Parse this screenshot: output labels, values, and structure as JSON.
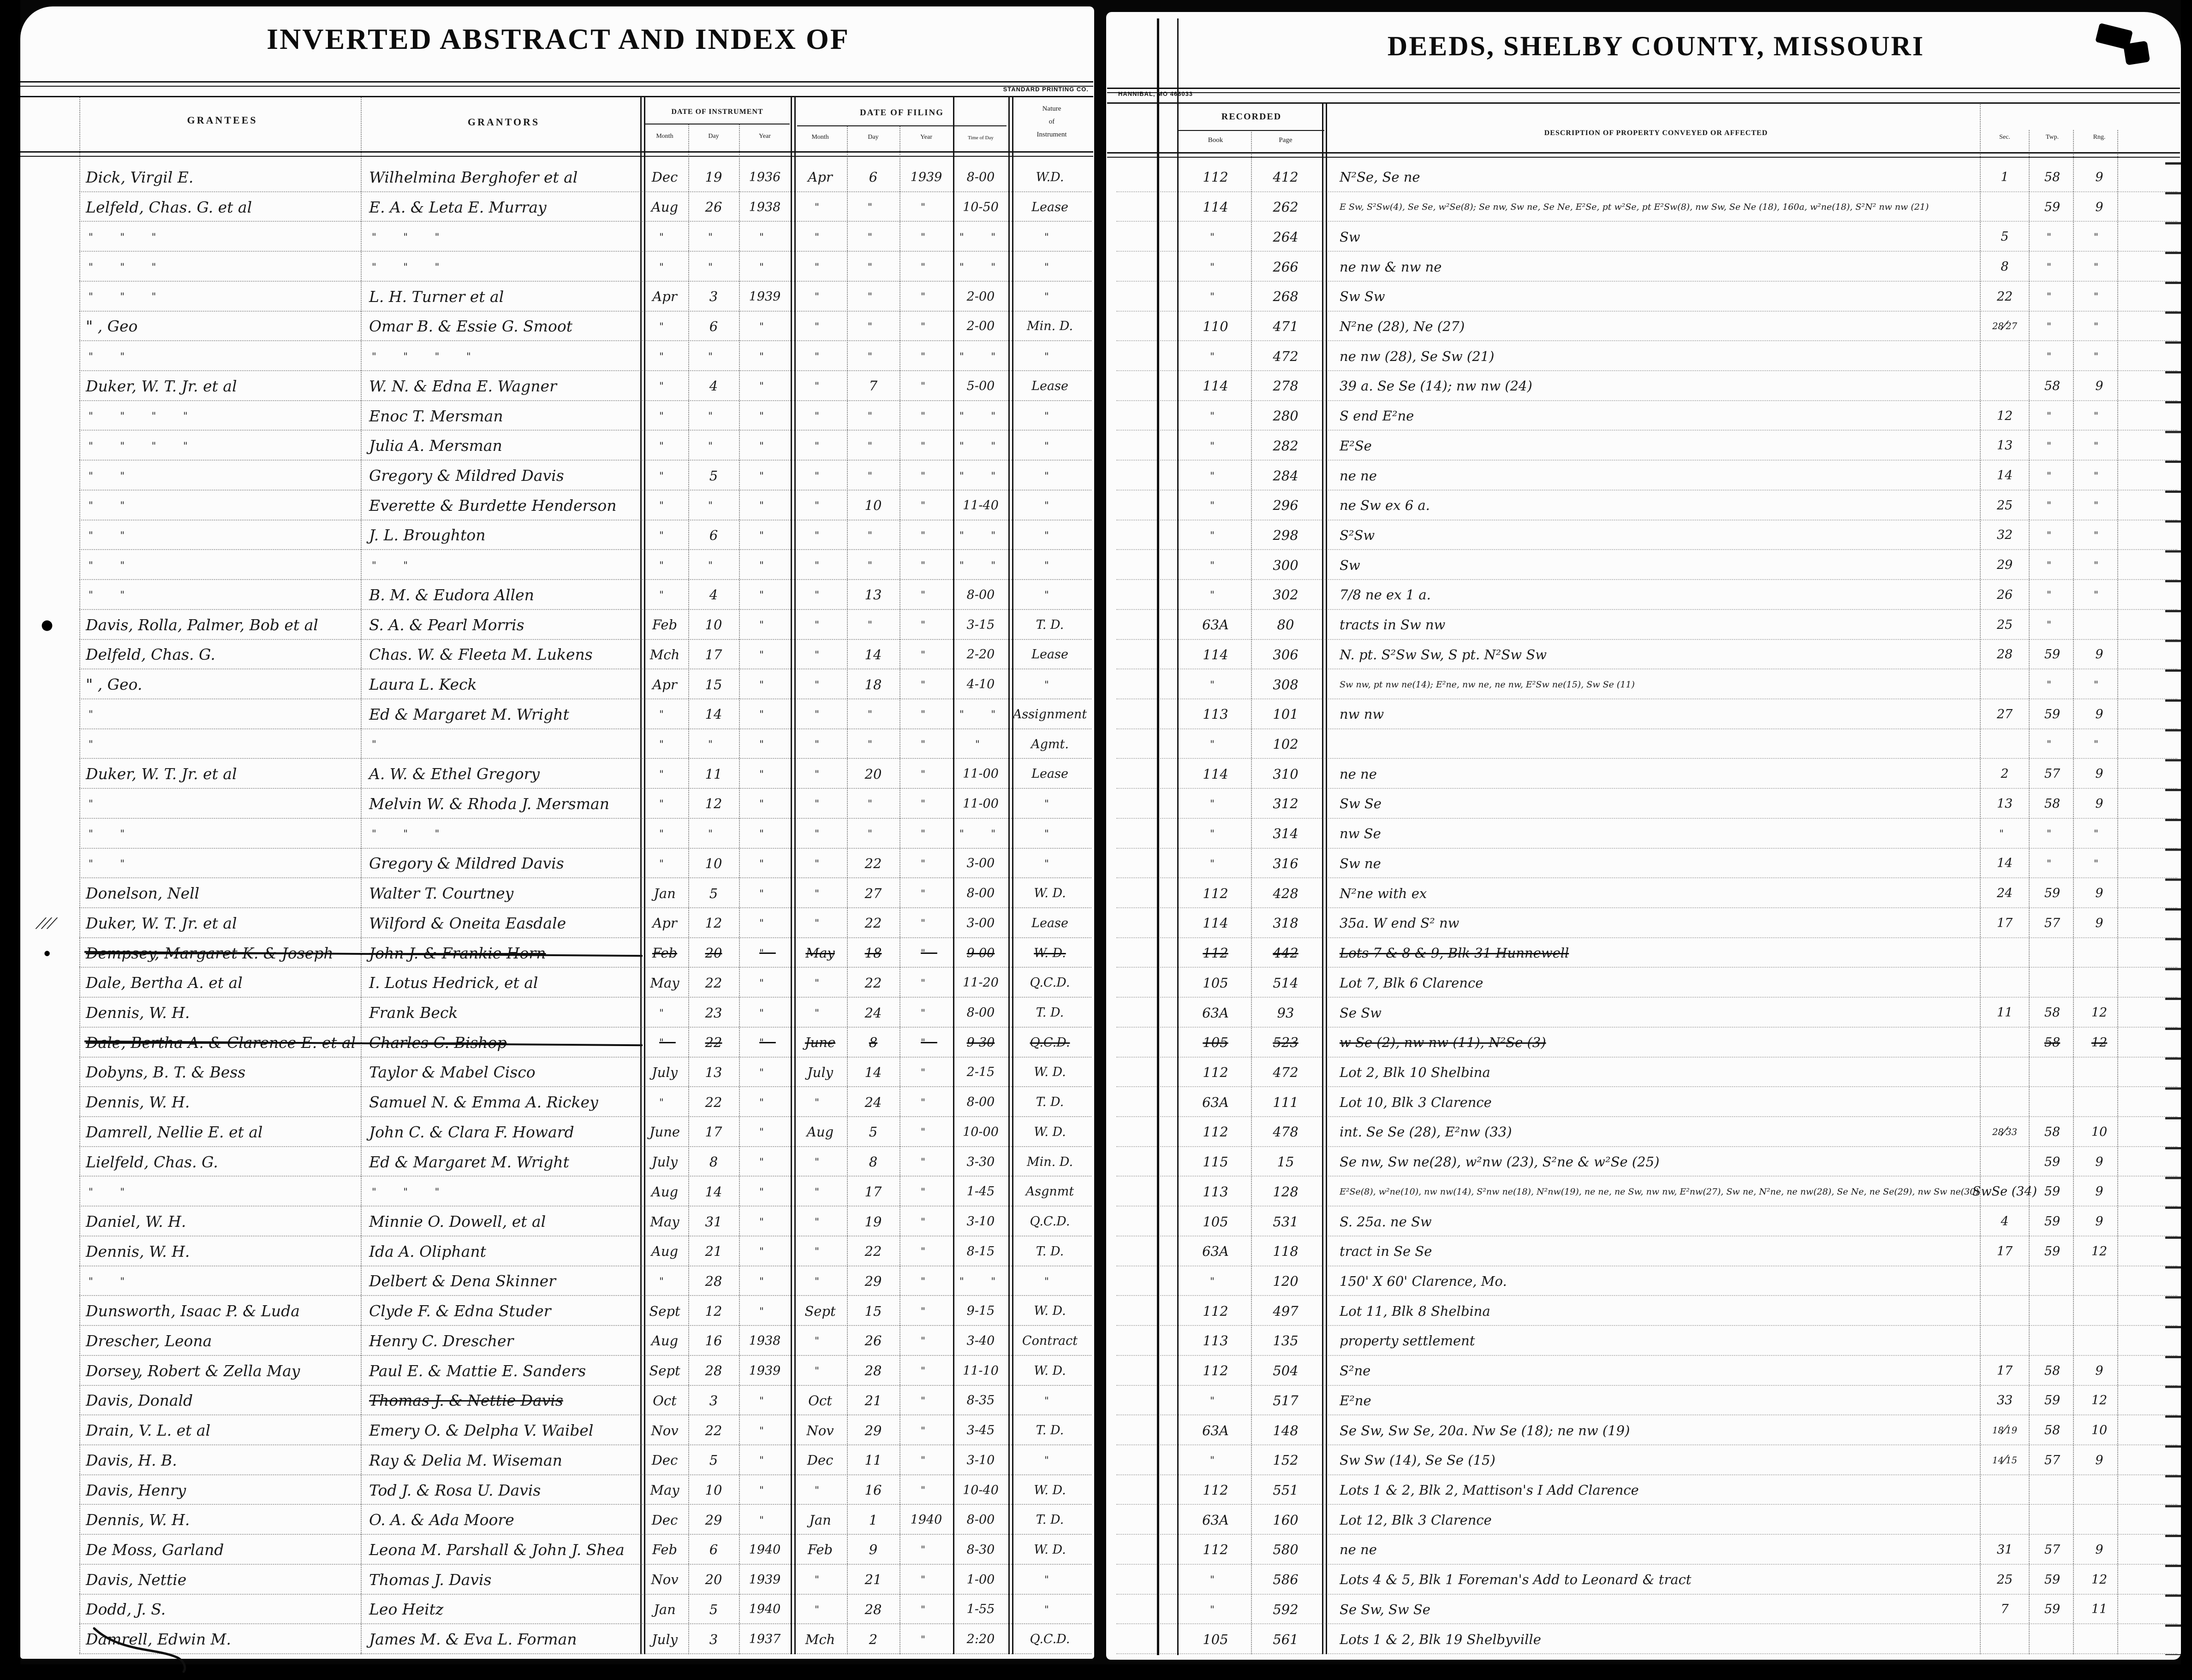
{
  "left_page": {
    "title": "INVERTED ABSTRACT AND INDEX OF",
    "printer": "STANDARD PRINTING CO.",
    "headers": {
      "grantees": "GRANTEES",
      "grantors": "GRANTORS",
      "date_of_instrument": "DATE OF INSTRUMENT",
      "date_of_filing": "DATE OF FILING",
      "month": "Month",
      "day": "Day",
      "year": "Year",
      "time_of_day": "Time of Day",
      "nature_line1": "Nature",
      "nature_line2": "of",
      "nature_line3": "Instrument"
    }
  },
  "right_page": {
    "title": "DEEDS, SHELBY COUNTY, MISSOURI",
    "printer": "HANNIBAL, MO 466033",
    "headers": {
      "recorded": "RECORDED",
      "book": "Book",
      "page": "Page",
      "description": "DESCRIPTION OF PROPERTY CONVEYED OR AFFECTED",
      "sec": "Sec.",
      "twp": "Twp.",
      "rng": "Rng."
    }
  },
  "ink_color": "#191919",
  "paper_color": "#fcfcfc",
  "rows": [
    {
      "g": "Dick, Virgil E.",
      "gr": "Wilhelmina Berghofer et al",
      "im": "Dec",
      "id": "19",
      "iy": "1936",
      "fm": "Apr",
      "fd": "6",
      "fy": "1939",
      "t": "8-00",
      "n": "W.D.",
      "bk": "112",
      "pg": "412",
      "d": "N²Se, Se ne",
      "sec": "1",
      "twp": "58",
      "rng": "9"
    },
    {
      "g": "Lelfeld, Chas. G. et al",
      "gr": "E. A. & Leta E. Murray",
      "im": "Aug",
      "id": "26",
      "iy": "1938",
      "fm": "\"",
      "fd": "\"",
      "fy": "\"",
      "t": "10-50",
      "n": "Lease",
      "bk": "114",
      "pg": "262",
      "d": "E Sw, S²Sw(4), Se Se, w²Se(8); Se nw, Sw ne, Se Ne, E²Se, pt w²Se, pt E²Sw(8), nw Sw, Se Ne (18), 160a, w²ne(18), S²N² nw nw (21)",
      "ds": true,
      "sec": "",
      "twp": "59",
      "rng": "9"
    },
    {
      "g": "\"   \"   \"",
      "gr": "\"   \"   \"",
      "im": "\"",
      "id": "\"",
      "iy": "\"",
      "fm": "\"",
      "fd": "\"",
      "fy": "\"",
      "t": "\"  \"",
      "n": "\"",
      "bk": "\"",
      "pg": "264",
      "d": "Sw",
      "sec": "5",
      "twp": "\"",
      "rng": "\""
    },
    {
      "g": "\"   \"   \"",
      "gr": "\"   \"   \"",
      "im": "\"",
      "id": "\"",
      "iy": "\"",
      "fm": "\"",
      "fd": "\"",
      "fy": "\"",
      "t": "\"  \"",
      "n": "\"",
      "bk": "\"",
      "pg": "266",
      "d": "ne nw & nw ne",
      "sec": "8",
      "twp": "\"",
      "rng": "\""
    },
    {
      "g": "\"   \"   \"",
      "gr": "L. H. Turner et al",
      "im": "Apr",
      "id": "3",
      "iy": "1939",
      "fm": "\"",
      "fd": "\"",
      "fy": "\"",
      "t": "2-00",
      "n": "\"",
      "bk": "\"",
      "pg": "268",
      "d": "Sw Sw",
      "sec": "22",
      "twp": "\"",
      "rng": "\""
    },
    {
      "g": "\"      , Geo",
      "gr": "Omar B. & Essie G. Smoot",
      "im": "\"",
      "id": "6",
      "iy": "\"",
      "fm": "\"",
      "fd": "\"",
      "fy": "\"",
      "t": "2-00",
      "n": "Min. D.",
      "bk": "110",
      "pg": "471",
      "d": "N²ne (28), Ne (27)",
      "sec": "28/27",
      "twp": "\"",
      "rng": "\""
    },
    {
      "g": "\"   \"",
      "gr": "\"   \"   \"   \"",
      "im": "\"",
      "id": "\"",
      "iy": "\"",
      "fm": "\"",
      "fd": "\"",
      "fy": "\"",
      "t": "\"  \"",
      "n": "\"",
      "bk": "\"",
      "pg": "472",
      "d": "ne nw (28), Se Sw (21)",
      "sec": "",
      "twp": "\"",
      "rng": "\""
    },
    {
      "g": "Duker, W. T. Jr. et al",
      "gr": "W. N. & Edna E. Wagner",
      "im": "\"",
      "id": "4",
      "iy": "\"",
      "fm": "\"",
      "fd": "7",
      "fy": "\"",
      "t": "5-00",
      "n": "Lease",
      "bk": "114",
      "pg": "278",
      "d": "39 a. Se Se (14); nw nw (24)",
      "sec": "",
      "twp": "58",
      "rng": "9"
    },
    {
      "g": "\"   \"   \"   \"",
      "gr": "Enoc T. Mersman",
      "im": "\"",
      "id": "\"",
      "iy": "\"",
      "fm": "\"",
      "fd": "\"",
      "fy": "\"",
      "t": "\"  \"",
      "n": "\"",
      "bk": "\"",
      "pg": "280",
      "d": "S end E²ne",
      "sec": "12",
      "twp": "\"",
      "rng": "\""
    },
    {
      "g": "\"   \"   \"   \"",
      "gr": "Julia A. Mersman",
      "im": "\"",
      "id": "\"",
      "iy": "\"",
      "fm": "\"",
      "fd": "\"",
      "fy": "\"",
      "t": "\"  \"",
      "n": "\"",
      "bk": "\"",
      "pg": "282",
      "d": "E²Se",
      "sec": "13",
      "twp": "\"",
      "rng": "\""
    },
    {
      "g": "\"   \"",
      "gr": "Gregory & Mildred Davis",
      "im": "\"",
      "id": "5",
      "iy": "\"",
      "fm": "\"",
      "fd": "\"",
      "fy": "\"",
      "t": "\"  \"",
      "n": "\"",
      "bk": "\"",
      "pg": "284",
      "d": "ne ne",
      "sec": "14",
      "twp": "\"",
      "rng": "\""
    },
    {
      "g": "\"   \"",
      "gr": "Everette & Burdette Henderson",
      "im": "\"",
      "id": "\"",
      "iy": "\"",
      "fm": "\"",
      "fd": "10",
      "fy": "\"",
      "t": "11-40",
      "n": "\"",
      "bk": "\"",
      "pg": "296",
      "d": "ne Sw ex 6 a.",
      "sec": "25",
      "twp": "\"",
      "rng": "\""
    },
    {
      "g": "\"   \"",
      "gr": "J. L. Broughton",
      "im": "\"",
      "id": "6",
      "iy": "\"",
      "fm": "\"",
      "fd": "\"",
      "fy": "\"",
      "t": "\"  \"",
      "n": "\"",
      "bk": "\"",
      "pg": "298",
      "d": "S²Sw",
      "sec": "32",
      "twp": "\"",
      "rng": "\""
    },
    {
      "g": "\"   \"",
      "gr": "\"   \"",
      "im": "\"",
      "id": "\"",
      "iy": "\"",
      "fm": "\"",
      "fd": "\"",
      "fy": "\"",
      "t": "\"  \"",
      "n": "\"",
      "bk": "\"",
      "pg": "300",
      "d": "Sw",
      "sec": "29",
      "twp": "\"",
      "rng": "\""
    },
    {
      "g": "\"   \"",
      "gr": "B. M. & Eudora Allen",
      "im": "\"",
      "id": "4",
      "iy": "\"",
      "fm": "\"",
      "fd": "13",
      "fy": "\"",
      "t": "8-00",
      "n": "\"",
      "bk": "\"",
      "pg": "302",
      "d": "7/8 ne ex 1 a.",
      "sec": "26",
      "twp": "\"",
      "rng": "\""
    },
    {
      "g": "Davis, Rolla, Palmer, Bob et al",
      "gr": "S. A. & Pearl Morris",
      "im": "Feb",
      "id": "10",
      "iy": "\"",
      "fm": "\"",
      "fd": "\"",
      "fy": "\"",
      "t": "3-15",
      "n": "T. D.",
      "bk": "63A",
      "pg": "80",
      "d": "tracts in Sw nw",
      "sec": "25",
      "twp": "\"",
      "rng": "",
      "m": "blot"
    },
    {
      "g": "Delfeld, Chas. G.",
      "gr": "Chas. W. & Fleeta M. Lukens",
      "im": "Mch",
      "id": "17",
      "iy": "\"",
      "fm": "\"",
      "fd": "14",
      "fy": "\"",
      "t": "2-20",
      "n": "Lease",
      "bk": "114",
      "pg": "306",
      "d": "N. pt. S²Sw Sw, S pt. N²Sw Sw",
      "sec": "28",
      "twp": "59",
      "rng": "9"
    },
    {
      "g": "\"      , Geo.",
      "gr": "Laura L. Keck",
      "im": "Apr",
      "id": "15",
      "iy": "\"",
      "fm": "\"",
      "fd": "18",
      "fy": "\"",
      "t": "4-10",
      "n": "\"",
      "bk": "\"",
      "pg": "308",
      "d": "Sw nw, pt nw ne(14); E²ne, nw ne, ne nw, E²Sw ne(15), Sw Se (11)",
      "ds": true,
      "sec": "",
      "twp": "\"",
      "rng": "\""
    },
    {
      "g": "\"",
      "gr": "Ed & Margaret M. Wright",
      "im": "\"",
      "id": "14",
      "iy": "\"",
      "fm": "\"",
      "fd": "\"",
      "fy": "\"",
      "t": "\"  \"",
      "n": "Assignment",
      "bk": "113",
      "pg": "101",
      "d": "nw nw",
      "sec": "27",
      "twp": "59",
      "rng": "9"
    },
    {
      "g": "\"",
      "gr": "\"",
      "im": "\"",
      "id": "\"",
      "iy": "\"",
      "fm": "\"",
      "fd": "\"",
      "fy": "\"",
      "t": "\"",
      "n": "Agmt.",
      "bk": "\"",
      "pg": "102",
      "d": "",
      "sec": "",
      "twp": "\"",
      "rng": "\""
    },
    {
      "g": "Duker, W. T. Jr. et al",
      "gr": "A. W. & Ethel Gregory",
      "im": "\"",
      "id": "11",
      "iy": "\"",
      "fm": "\"",
      "fd": "20",
      "fy": "\"",
      "t": "11-00",
      "n": "Lease",
      "bk": "114",
      "pg": "310",
      "d": "ne ne",
      "sec": "2",
      "twp": "57",
      "rng": "9"
    },
    {
      "g": "\"",
      "gr": "Melvin W. & Rhoda J. Mersman",
      "im": "\"",
      "id": "12",
      "iy": "\"",
      "fm": "\"",
      "fd": "\"",
      "fy": "\"",
      "t": "11-00",
      "n": "\"",
      "bk": "\"",
      "pg": "312",
      "d": "Sw Se",
      "sec": "13",
      "twp": "58",
      "rng": "9"
    },
    {
      "g": "\"   \"",
      "gr": "\"   \"   \"",
      "im": "\"",
      "id": "\"",
      "iy": "\"",
      "fm": "\"",
      "fd": "\"",
      "fy": "\"",
      "t": "\"  \"",
      "n": "\"",
      "bk": "\"",
      "pg": "314",
      "d": "nw Se",
      "sec": "\"",
      "twp": "\"",
      "rng": "\""
    },
    {
      "g": "\"   \"",
      "gr": "Gregory & Mildred Davis",
      "im": "\"",
      "id": "10",
      "iy": "\"",
      "fm": "\"",
      "fd": "22",
      "fy": "\"",
      "t": "3-00",
      "n": "\"",
      "bk": "\"",
      "pg": "316",
      "d": "Sw ne",
      "sec": "14",
      "twp": "\"",
      "rng": "\""
    },
    {
      "g": "Donelson, Nell",
      "gr": "Walter T. Courtney",
      "im": "Jan",
      "id": "5",
      "iy": "\"",
      "fm": "\"",
      "fd": "27",
      "fy": "\"",
      "t": "8-00",
      "n": "W. D.",
      "bk": "112",
      "pg": "428",
      "d": "N²ne with ex",
      "sec": "24",
      "twp": "59",
      "rng": "9"
    },
    {
      "g": "Duker, W. T. Jr. et al",
      "gr": "Wilford & Oneita Easdale",
      "im": "Apr",
      "id": "12",
      "iy": "\"",
      "fm": "\"",
      "fd": "22",
      "fy": "\"",
      "t": "3-00",
      "n": "Lease",
      "bk": "114",
      "pg": "318",
      "d": "35a. W end S² nw",
      "sec": "17",
      "twp": "57",
      "rng": "9",
      "m": "hatch"
    },
    {
      "g": "Dempsey, Margaret K. & Joseph",
      "gr": "John J. & Frankie Horn",
      "im": "Feb",
      "id": "20",
      "iy": "\"",
      "fm": "May",
      "fd": "18",
      "fy": "\"",
      "t": "9-00",
      "n": "W. D.",
      "bk": "112",
      "pg": "442",
      "d": "Lots 7 & 8 & 9, Blk 31 Hunnewell",
      "sec": "",
      "twp": "",
      "rng": "",
      "struck": true,
      "m": "dot"
    },
    {
      "g": "Dale, Bertha A. et al",
      "gr": "I. Lotus Hedrick, et al",
      "im": "May",
      "id": "22",
      "iy": "\"",
      "fm": "\"",
      "fd": "22",
      "fy": "\"",
      "t": "11-20",
      "n": "Q.C.D.",
      "bk": "105",
      "pg": "514",
      "d": "Lot 7, Blk 6 Clarence",
      "sec": "",
      "twp": "",
      "rng": ""
    },
    {
      "g": "Dennis, W. H.",
      "gr": "Frank Beck",
      "im": "\"",
      "id": "23",
      "iy": "\"",
      "fm": "\"",
      "fd": "24",
      "fy": "\"",
      "t": "8-00",
      "n": "T. D.",
      "bk": "63A",
      "pg": "93",
      "d": "Se Sw",
      "sec": "11",
      "twp": "58",
      "rng": "12"
    },
    {
      "g": "Dale, Bertha A. & Clarence E. et al",
      "gr": "Charles C. Bishop",
      "im": "\"",
      "id": "22",
      "iy": "\"",
      "fm": "June",
      "fd": "8",
      "fy": "\"",
      "t": "9-30",
      "n": "Q.C.D.",
      "bk": "105",
      "pg": "523",
      "d": "w Se (2), nw nw (11), N²Se (3)",
      "sec": "",
      "twp": "58",
      "rng": "12",
      "struck": true
    },
    {
      "g": "Dobyns, B. T. & Bess",
      "gr": "Taylor & Mabel Cisco",
      "im": "July",
      "id": "13",
      "iy": "\"",
      "fm": "July",
      "fd": "14",
      "fy": "\"",
      "t": "2-15",
      "n": "W. D.",
      "bk": "112",
      "pg": "472",
      "d": "Lot 2, Blk 10 Shelbina",
      "sec": "",
      "twp": "",
      "rng": ""
    },
    {
      "g": "Dennis, W. H.",
      "gr": "Samuel N. & Emma A. Rickey",
      "im": "\"",
      "id": "22",
      "iy": "\"",
      "fm": "\"",
      "fd": "24",
      "fy": "\"",
      "t": "8-00",
      "n": "T. D.",
      "bk": "63A",
      "pg": "111",
      "d": "Lot 10, Blk 3 Clarence",
      "sec": "",
      "twp": "",
      "rng": ""
    },
    {
      "g": "Damrell, Nellie E. et al",
      "gr": "John C. & Clara F. Howard",
      "im": "June",
      "id": "17",
      "iy": "\"",
      "fm": "Aug",
      "fd": "5",
      "fy": "\"",
      "t": "10-00",
      "n": "W. D.",
      "bk": "112",
      "pg": "478",
      "d": "int. Se Se (28), E²nw (33)",
      "sec": "28/33",
      "twp": "58",
      "rng": "10"
    },
    {
      "g": "Lielfeld, Chas. G.",
      "gr": "Ed & Margaret M. Wright",
      "im": "July",
      "id": "8",
      "iy": "\"",
      "fm": "\"",
      "fd": "8",
      "fy": "\"",
      "t": "3-30",
      "n": "Min. D.",
      "bk": "115",
      "pg": "15",
      "d": "Se nw, Sw ne(28), w²nw (23), S²ne & w²Se (25)",
      "sec": "",
      "twp": "59",
      "rng": "9"
    },
    {
      "g": "\"   \"",
      "gr": "\"   \"   \"",
      "im": "Aug",
      "id": "14",
      "iy": "\"",
      "fm": "\"",
      "fd": "17",
      "fy": "\"",
      "t": "1-45",
      "n": "Asgnmt",
      "bk": "113",
      "pg": "128",
      "d": "E²Se(8), w²ne(10), nw nw(14), S²nw ne(18), N²nw(19), ne ne, ne Sw, nw nw, E²nw(27), Sw ne, N²ne, ne nw(28), Se Ne, ne Se(29), nw Sw ne(30)",
      "ds": true,
      "sec": "SwSe (34)",
      "twp": "59",
      "rng": "9"
    },
    {
      "g": "Daniel, W. H.",
      "gr": "Minnie O. Dowell, et al",
      "im": "May",
      "id": "31",
      "iy": "\"",
      "fm": "\"",
      "fd": "19",
      "fy": "\"",
      "t": "3-10",
      "n": "Q.C.D.",
      "bk": "105",
      "pg": "531",
      "d": "S. 25a. ne Sw",
      "sec": "4",
      "twp": "59",
      "rng": "9"
    },
    {
      "g": "Dennis, W. H.",
      "gr": "Ida A. Oliphant",
      "im": "Aug",
      "id": "21",
      "iy": "\"",
      "fm": "\"",
      "fd": "22",
      "fy": "\"",
      "t": "8-15",
      "n": "T. D.",
      "bk": "63A",
      "pg": "118",
      "d": "tract in Se Se",
      "sec": "17",
      "twp": "59",
      "rng": "12"
    },
    {
      "g": "\"   \"",
      "gr": "Delbert & Dena Skinner",
      "im": "\"",
      "id": "28",
      "iy": "\"",
      "fm": "\"",
      "fd": "29",
      "fy": "\"",
      "t": "\"  \"",
      "n": "\"",
      "bk": "\"",
      "pg": "120",
      "d": "150' X 60' Clarence, Mo.",
      "sec": "",
      "twp": "",
      "rng": ""
    },
    {
      "g": "Dunsworth, Isaac P. & Luda",
      "gr": "Clyde F. & Edna Studer",
      "im": "Sept",
      "id": "12",
      "iy": "\"",
      "fm": "Sept",
      "fd": "15",
      "fy": "\"",
      "t": "9-15",
      "n": "W. D.",
      "bk": "112",
      "pg": "497",
      "d": "Lot 11, Blk 8 Shelbina",
      "sec": "",
      "twp": "",
      "rng": ""
    },
    {
      "g": "Drescher, Leona",
      "gr": "Henry C. Drescher",
      "im": "Aug",
      "id": "16",
      "iy": "1938",
      "fm": "\"",
      "fd": "26",
      "fy": "\"",
      "t": "3-40",
      "n": "Contract",
      "bk": "113",
      "pg": "135",
      "d": "property settlement",
      "sec": "",
      "twp": "",
      "rng": ""
    },
    {
      "g": "Dorsey, Robert & Zella May",
      "gr": "Paul E. & Mattie E. Sanders",
      "im": "Sept",
      "id": "28",
      "iy": "1939",
      "fm": "\"",
      "fd": "28",
      "fy": "\"",
      "t": "11-10",
      "n": "W. D.",
      "bk": "112",
      "pg": "504",
      "d": "S²ne",
      "sec": "17",
      "twp": "58",
      "rng": "9"
    },
    {
      "g": "Davis, Donald",
      "gr": "Thomas J. & Nettie Davis",
      "grst": true,
      "im": "Oct",
      "id": "3",
      "iy": "\"",
      "fm": "Oct",
      "fd": "21",
      "fy": "\"",
      "t": "8-35",
      "n": "\"",
      "bk": "\"",
      "pg": "517",
      "d": "E²ne",
      "sec": "33",
      "twp": "59",
      "rng": "12"
    },
    {
      "g": "Drain, V. L. et al",
      "gr": "Emery O. & Delpha V. Waibel",
      "im": "Nov",
      "id": "22",
      "iy": "\"",
      "fm": "Nov",
      "fd": "29",
      "fy": "\"",
      "t": "3-45",
      "n": "T. D.",
      "bk": "63A",
      "pg": "148",
      "d": "Se Sw, Sw Se, 20a. Nw Se (18); ne nw (19)",
      "sec": "18/19",
      "twp": "58",
      "rng": "10"
    },
    {
      "g": "Davis, H. B.",
      "gr": "Ray & Delia M. Wiseman",
      "im": "Dec",
      "id": "5",
      "iy": "\"",
      "fm": "Dec",
      "fd": "11",
      "fy": "\"",
      "t": "3-10",
      "n": "\"",
      "bk": "\"",
      "pg": "152",
      "d": "Sw Sw (14), Se Se (15)",
      "sec": "14/15",
      "twp": "57",
      "rng": "9"
    },
    {
      "g": "Davis, Henry",
      "gr": "Tod J. & Rosa U. Davis",
      "im": "May",
      "id": "10",
      "iy": "\"",
      "fm": "\"",
      "fd": "16",
      "fy": "\"",
      "t": "10-40",
      "n": "W. D.",
      "bk": "112",
      "pg": "551",
      "d": "Lots 1 & 2, Blk 2, Mattison's I Add Clarence",
      "sec": "",
      "twp": "",
      "rng": ""
    },
    {
      "g": "Dennis, W. H.",
      "gr": "O. A. & Ada Moore",
      "im": "Dec",
      "id": "29",
      "iy": "\"",
      "fm": "Jan",
      "fd": "1",
      "fy": "1940",
      "t": "8-00",
      "n": "T. D.",
      "bk": "63A",
      "pg": "160",
      "d": "Lot 12, Blk 3 Clarence",
      "sec": "",
      "twp": "",
      "rng": ""
    },
    {
      "g": "De Moss, Garland",
      "gr": "Leona M. Parshall & John J. Shea",
      "im": "Feb",
      "id": "6",
      "iy": "1940",
      "fm": "Feb",
      "fd": "9",
      "fy": "\"",
      "t": "8-30",
      "n": "W. D.",
      "bk": "112",
      "pg": "580",
      "d": "ne ne",
      "sec": "31",
      "twp": "57",
      "rng": "9"
    },
    {
      "g": "Davis, Nettie",
      "gr": "Thomas J. Davis",
      "im": "Nov",
      "id": "20",
      "iy": "1939",
      "fm": "\"",
      "fd": "21",
      "fy": "\"",
      "t": "1-00",
      "n": "\"",
      "bk": "\"",
      "pg": "586",
      "d": "Lots 4 & 5, Blk 1 Foreman's Add to Leonard & tract",
      "sec": "25",
      "twp": "59",
      "rng": "12"
    },
    {
      "g": "Dodd, J. S.",
      "gr": "Leo Heitz",
      "im": "Jan",
      "id": "5",
      "iy": "1940",
      "fm": "\"",
      "fd": "28",
      "fy": "\"",
      "t": "1-55",
      "n": "\"",
      "bk": "\"",
      "pg": "592",
      "d": "Se Sw, Sw Se",
      "sec": "7",
      "twp": "59",
      "rng": "11"
    },
    {
      "g": "Damrell, Edwin M.",
      "gr": "James M. & Eva L. Forman",
      "im": "July",
      "id": "3",
      "iy": "1937",
      "fm": "Mch",
      "fd": "2",
      "fy": "\"",
      "t": "2:20",
      "n": "Q.C.D.",
      "bk": "105",
      "pg": "561",
      "d": "Lots 1 & 2, Blk 19 Shelbyville",
      "sec": "",
      "twp": "",
      "rng": ""
    }
  ]
}
